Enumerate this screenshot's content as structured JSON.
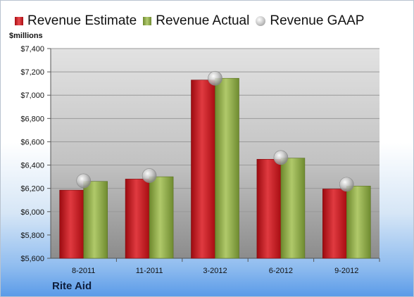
{
  "legend": {
    "estimate": "Revenue Estimate",
    "actual": "Revenue Actual",
    "gaap": "Revenue GAAP"
  },
  "unit_label": "$millions",
  "company": "Rite Aid",
  "colors": {
    "estimate": "#c3161c",
    "actual": "#8cab47",
    "gaap": "#b0b0b0"
  },
  "chart_data": {
    "type": "bar",
    "categories": [
      "8-2011",
      "11-2011",
      "3-2012",
      "6-2012",
      "9-2012"
    ],
    "series": [
      {
        "name": "Revenue Estimate",
        "values": [
          6185,
          6280,
          7130,
          6450,
          6195
        ]
      },
      {
        "name": "Revenue Actual",
        "values": [
          6260,
          6300,
          7145,
          6460,
          6220
        ]
      },
      {
        "name": "Revenue GAAP",
        "values": [
          6265,
          6310,
          7145,
          6465,
          6235
        ]
      }
    ],
    "ylabel": "$millions",
    "ylim": [
      5600,
      7400
    ],
    "yticks": [
      "$5,600",
      "$5,800",
      "$6,000",
      "$6,200",
      "$6,400",
      "$6,600",
      "$6,800",
      "$7,000",
      "$7,200",
      "$7,400"
    ],
    "grid": true,
    "legend_position": "top"
  }
}
